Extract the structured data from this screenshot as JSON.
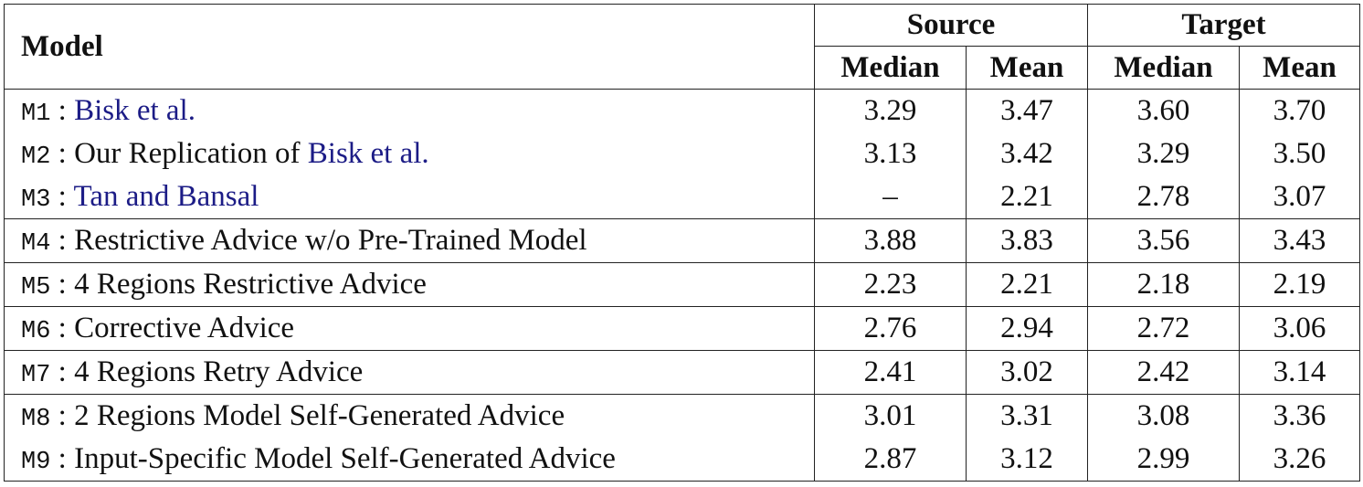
{
  "table": {
    "header": {
      "model": "Model",
      "groups": [
        "Source",
        "Target"
      ],
      "columns": [
        "Median",
        "Mean",
        "Median",
        "Mean"
      ]
    },
    "separator": ":",
    "groups": [
      [
        {
          "id": "M1",
          "name": [
            {
              "text": "Bisk et al.",
              "link": true
            }
          ],
          "cells": [
            "3.29",
            "3.47",
            "3.60",
            "3.70"
          ]
        },
        {
          "id": "M2",
          "name": [
            {
              "text": "Our Replication of",
              "link": false
            },
            {
              "text": "Bisk et al.",
              "link": true
            }
          ],
          "cells": [
            "3.13",
            "3.42",
            "3.29",
            "3.50"
          ]
        },
        {
          "id": "M3",
          "name": [
            {
              "text": "Tan and Bansal",
              "link": true
            }
          ],
          "cells": [
            "–",
            "2.21",
            "2.78",
            "3.07"
          ]
        }
      ],
      [
        {
          "id": "M4",
          "name": [
            {
              "text": "Restrictive Advice w/o Pre-Trained Model",
              "link": false
            }
          ],
          "cells": [
            "3.88",
            "3.83",
            "3.56",
            "3.43"
          ]
        }
      ],
      [
        {
          "id": "M5",
          "name": [
            {
              "text": "4 Regions Restrictive Advice",
              "link": false
            }
          ],
          "cells": [
            "2.23",
            "2.21",
            "2.18",
            "2.19"
          ]
        }
      ],
      [
        {
          "id": "M6",
          "name": [
            {
              "text": "Corrective Advice",
              "link": false
            }
          ],
          "cells": [
            "2.76",
            "2.94",
            "2.72",
            "3.06"
          ]
        }
      ],
      [
        {
          "id": "M7",
          "name": [
            {
              "text": "4 Regions Retry Advice",
              "link": false
            }
          ],
          "cells": [
            "2.41",
            "3.02",
            "2.42",
            "3.14"
          ]
        }
      ],
      [
        {
          "id": "M8",
          "name": [
            {
              "text": "2 Regions Model Self-Generated Advice",
              "link": false
            }
          ],
          "cells": [
            "3.01",
            "3.31",
            "3.08",
            "3.36"
          ]
        },
        {
          "id": "M9",
          "name": [
            {
              "text": "Input-Specific Model Self-Generated Advice",
              "link": false
            }
          ],
          "cells": [
            "2.87",
            "3.12",
            "2.99",
            "3.26"
          ]
        }
      ]
    ]
  }
}
